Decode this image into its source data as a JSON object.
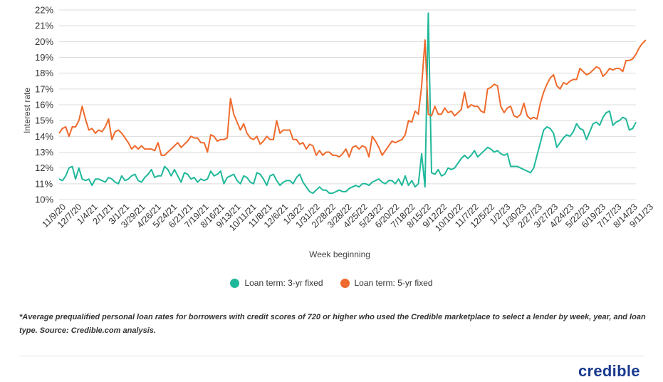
{
  "chart_data": {
    "type": "line",
    "xlabel": "Week beginning",
    "ylabel": "Interest rate",
    "ylim": [
      10,
      22
    ],
    "y_ticks": [
      "22%",
      "21%",
      "20%",
      "19%",
      "18%",
      "17%",
      "16%",
      "15%",
      "14%",
      "13%",
      "12%",
      "11%",
      "10%"
    ],
    "x_ticks": [
      "11/9/20",
      "12/7/20",
      "1/4/21",
      "2/1/21",
      "3/1/21",
      "3/29/21",
      "4/26/21",
      "5/24/21",
      "6/21/21",
      "7/19/21",
      "8/16/21",
      "9/13/21",
      "10/11/21",
      "11/8/21",
      "12/6/21",
      "1/3/22",
      "1/31/22",
      "2/28/22",
      "3/28/22",
      "4/25/22",
      "5/23/22",
      "6/20/22",
      "7/18/22",
      "8/15/22",
      "9/12/22",
      "10/10/22",
      "11/7/22",
      "12/5/22",
      "1/2/23",
      "1/30/23",
      "2/27/23",
      "3/27/23",
      "4/24/23",
      "5/22/23",
      "6/19/23",
      "7/17/23",
      "8/14/23",
      "9/11/23"
    ],
    "grid": true,
    "legend_position": "bottom",
    "series": [
      {
        "name": "Loan term: 3-yr fixed",
        "color": "#1fb89a",
        "values": [
          11.3,
          11.2,
          11.5,
          12.0,
          12.1,
          11.3,
          12.0,
          11.3,
          11.2,
          11.3,
          10.9,
          11.3,
          11.3,
          11.2,
          11.1,
          11.4,
          11.3,
          11.1,
          11.0,
          11.5,
          11.2,
          11.3,
          11.5,
          11.6,
          11.2,
          11.1,
          11.4,
          11.6,
          11.9,
          11.4,
          11.5,
          11.5,
          12.1,
          11.9,
          11.5,
          11.9,
          11.5,
          11.1,
          11.7,
          11.6,
          11.3,
          11.4,
          11.1,
          11.3,
          11.2,
          11.3,
          11.8,
          11.5,
          11.6,
          11.8,
          11.0,
          11.4,
          11.5,
          11.6,
          11.2,
          11.0,
          11.5,
          11.4,
          11.1,
          11.0,
          11.7,
          11.6,
          11.3,
          10.9,
          11.5,
          11.6,
          11.2,
          10.9,
          11.1,
          11.2,
          11.2,
          11.0,
          11.4,
          11.6,
          11.1,
          10.8,
          10.5,
          10.4,
          10.6,
          10.8,
          10.6,
          10.6,
          10.4,
          10.4,
          10.5,
          10.6,
          10.5,
          10.5,
          10.7,
          10.8,
          10.9,
          10.8,
          11.0,
          11.0,
          10.9,
          11.1,
          11.2,
          11.3,
          11.1,
          11.0,
          11.2,
          11.2,
          11.0,
          11.3,
          10.9,
          11.5,
          10.9,
          11.2,
          10.8,
          11.0,
          12.9,
          10.8,
          21.8,
          11.7,
          11.6,
          11.9,
          11.5,
          11.6,
          12.0,
          11.9,
          12.0,
          12.3,
          12.6,
          12.8,
          12.6,
          12.8,
          13.1,
          12.7,
          12.9,
          13.1,
          13.3,
          13.2,
          13.0,
          13.1,
          12.9,
          12.8,
          12.9,
          12.1,
          12.1,
          12.1,
          12.0,
          11.9,
          11.8,
          11.7,
          12.0,
          12.8,
          13.6,
          14.4,
          14.6,
          14.5,
          14.2,
          13.3,
          13.6,
          13.9,
          14.1,
          14.0,
          14.3,
          14.8,
          14.5,
          14.4,
          13.8,
          14.3,
          14.8,
          14.9,
          14.7,
          15.2,
          15.5,
          15.6,
          14.7,
          14.9,
          15.0,
          15.2,
          15.1,
          14.4,
          14.5,
          14.9
        ]
      },
      {
        "name": "Loan term: 5-yr fixed",
        "color": "#ef6a2c",
        "values": [
          14.2,
          14.5,
          14.6,
          14.0,
          14.6,
          14.6,
          15.0,
          15.9,
          15.1,
          14.4,
          14.5,
          14.2,
          14.4,
          14.3,
          14.6,
          15.1,
          13.8,
          14.3,
          14.4,
          14.2,
          13.9,
          13.6,
          13.2,
          13.4,
          13.2,
          13.4,
          13.2,
          13.2,
          13.2,
          13.1,
          13.6,
          12.8,
          12.8,
          13.0,
          13.2,
          13.4,
          13.6,
          13.3,
          13.5,
          13.7,
          14.0,
          13.9,
          13.9,
          13.6,
          13.6,
          13.0,
          14.1,
          14.0,
          13.7,
          13.8,
          13.8,
          13.9,
          16.4,
          15.4,
          14.9,
          14.4,
          14.8,
          14.2,
          13.9,
          13.8,
          14.0,
          13.5,
          13.7,
          14.0,
          13.8,
          13.8,
          15.0,
          14.2,
          14.4,
          14.4,
          14.4,
          13.8,
          13.8,
          13.5,
          13.6,
          13.2,
          13.5,
          13.4,
          12.8,
          13.1,
          12.8,
          13.0,
          13.0,
          12.8,
          12.8,
          12.7,
          12.9,
          13.2,
          12.7,
          13.3,
          13.4,
          13.2,
          13.4,
          13.3,
          12.7,
          14.0,
          13.7,
          13.3,
          12.8,
          13.1,
          13.4,
          13.7,
          13.6,
          13.7,
          13.8,
          14.1,
          15.0,
          14.9,
          15.6,
          15.4,
          17.2,
          20.1,
          15.4,
          15.3,
          15.9,
          15.4,
          15.4,
          15.8,
          15.5,
          15.6,
          15.3,
          15.5,
          15.7,
          16.8,
          15.8,
          16.0,
          15.9,
          15.9,
          15.6,
          15.5,
          17.0,
          17.1,
          17.3,
          17.2,
          15.9,
          15.5,
          15.8,
          15.9,
          15.3,
          15.2,
          15.4,
          16.1,
          15.3,
          15.1,
          15.2,
          15.1,
          16.1,
          16.8,
          17.3,
          17.7,
          17.9,
          17.2,
          17.0,
          17.4,
          17.3,
          17.5,
          17.6,
          17.6,
          18.3,
          18.1,
          17.9,
          18.0,
          18.2,
          18.4,
          18.3,
          17.8,
          18.0,
          18.3,
          18.2,
          18.3,
          18.3,
          18.1,
          18.8,
          18.8,
          18.9,
          19.2,
          19.6,
          19.9,
          20.1
        ]
      }
    ]
  },
  "footnote": "*Average prequalified personal loan rates for borrowers with credit scores of 720 or higher who used the Credible marketplace to select a lender by week, year, and loan type. Source: Credible.com analysis.",
  "brand": "credible"
}
